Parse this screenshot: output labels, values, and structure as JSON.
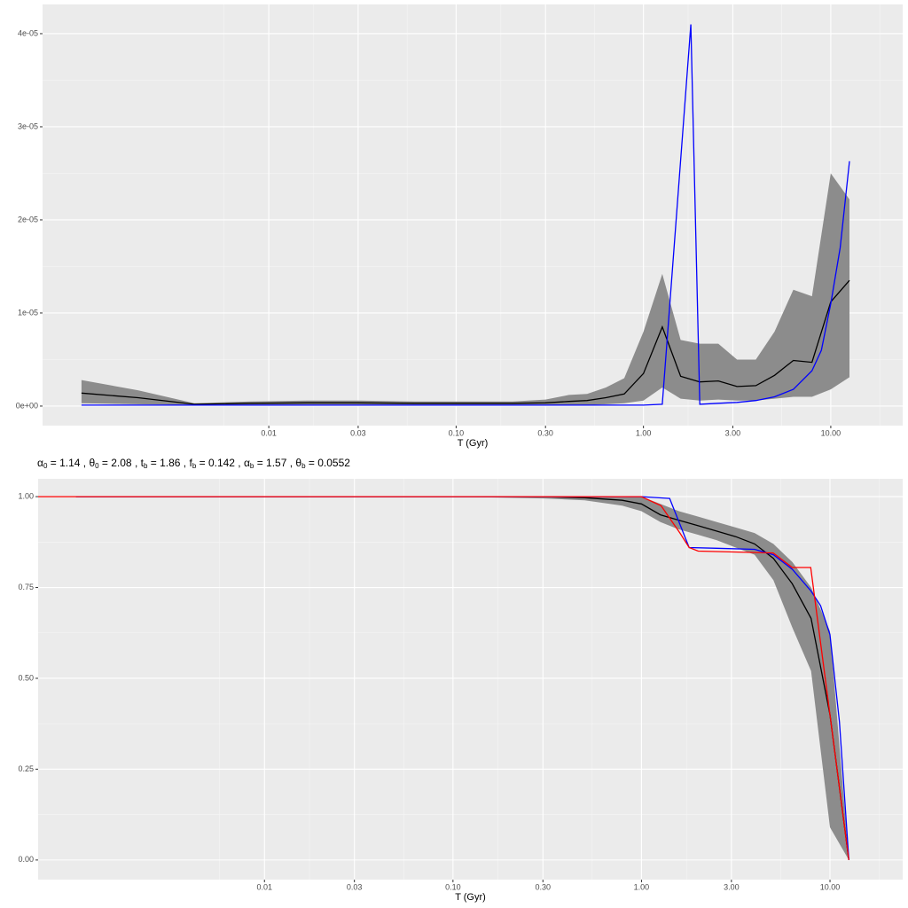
{
  "chart_data": [
    {
      "type": "line",
      "xlabel": "T (Gyr)",
      "xscale": "log",
      "grid": true,
      "xlim": [
        0.00062,
        24.2
      ],
      "ylim": [
        -2.1e-06,
        4.314e-05
      ],
      "xticks": [
        0.01,
        0.03,
        {
          "value": 0.1,
          "label": "0.10"
        },
        {
          "value": 0.3,
          "label": "0.30"
        },
        {
          "value": 1,
          "label": "1.00"
        },
        {
          "value": 3,
          "label": "3.00"
        },
        {
          "value": 10,
          "label": "10.00"
        }
      ],
      "yticks": [
        {
          "value": 0,
          "label": "0e+00"
        },
        {
          "value": 1e-05,
          "label": "1e-05"
        },
        {
          "value": 2e-05,
          "label": "2e-05"
        },
        {
          "value": 3e-05,
          "label": "3e-05"
        },
        {
          "value": 4e-05,
          "label": "4e-05"
        }
      ],
      "x": [
        0.001,
        0.002,
        0.004,
        0.008,
        0.016,
        0.03,
        0.06,
        0.1,
        0.2,
        0.3,
        0.4,
        0.5,
        0.63,
        0.79,
        1.0,
        1.26,
        1.58,
        2.0,
        2.51,
        3.16,
        3.98,
        5.01,
        6.31,
        7.94,
        10.0,
        12.59
      ],
      "band": {
        "color": "#8c8c8c",
        "upper": [
          2.8e-06,
          1.7e-06,
          3e-07,
          5e-07,
          6e-07,
          6e-07,
          5e-07,
          5e-07,
          5e-07,
          7e-07,
          1.2e-06,
          1.3e-06,
          2e-06,
          3e-06,
          8e-06,
          1.42e-05,
          7.1e-06,
          6.7e-06,
          6.7e-06,
          5e-06,
          5e-06,
          8e-06,
          1.25e-05,
          1.18e-05,
          2.5e-05,
          2.22e-05
        ],
        "lower": [
          3e-07,
          2e-07,
          1e-07,
          1e-07,
          1e-07,
          1e-07,
          1e-07,
          1e-07,
          1e-07,
          1e-07,
          1e-07,
          1e-07,
          2e-07,
          3e-07,
          6e-07,
          2e-06,
          8e-07,
          6e-07,
          7e-07,
          6e-07,
          6e-07,
          8e-07,
          1e-06,
          1e-06,
          1.8e-06,
          3.1e-06
        ]
      },
      "series": [
        {
          "color": "#000000",
          "values": [
            1.4e-06,
            9e-07,
            2e-07,
            3e-07,
            3.5e-07,
            3.5e-07,
            3e-07,
            3e-07,
            3e-07,
            3.5e-07,
            5e-07,
            6e-07,
            9e-07,
            1.3e-06,
            3.5e-06,
            8.5e-06,
            3.2e-06,
            2.6e-06,
            2.7e-06,
            2.1e-06,
            2.2e-06,
            3.3e-06,
            4.9e-06,
            4.7e-06,
            1.12e-05,
            1.35e-05
          ]
        },
        {
          "color": "#0000ff",
          "x": [
            0.001,
            1.0,
            1.26,
            1.79,
            2.0,
            2.51,
            3.16,
            3.98,
            5.01,
            6.31,
            7.94,
            8.91,
            10.0,
            11.22,
            12.59
          ],
          "values": [
            1e-07,
            1e-07,
            2e-07,
            4.1e-05,
            2e-07,
            3e-07,
            4e-07,
            6e-07,
            1e-06,
            1.8e-06,
            3.8e-06,
            6e-06,
            1.1e-05,
            1.7e-05,
            2.63e-05
          ]
        }
      ]
    },
    {
      "type": "line",
      "xlabel": "T (Gyr)",
      "xscale": "log",
      "grid": true,
      "annotation": [
        {
          "symbol": "α",
          "sub": "0",
          "text": " = 1.14 , "
        },
        {
          "symbol": "θ",
          "sub": "0",
          "text": " = 2.08 , "
        },
        {
          "symbol": "t",
          "sub": "b",
          "text": " = 1.86 , "
        },
        {
          "symbol": "f",
          "sub": "b",
          "text": " = 0.142 , "
        },
        {
          "symbol": "α",
          "sub": "b",
          "text": " = 1.57 , "
        },
        {
          "symbol": "θ",
          "sub": "b",
          "text": " = 0.0552"
        }
      ],
      "xlim": [
        0.00063,
        24.3
      ],
      "ylim": [
        -0.054,
        1.049
      ],
      "xticks": [
        0.01,
        0.03,
        {
          "value": 0.1,
          "label": "0.10"
        },
        {
          "value": 0.3,
          "label": "0.30"
        },
        {
          "value": 1,
          "label": "1.00"
        },
        {
          "value": 3,
          "label": "3.00"
        },
        {
          "value": 10,
          "label": "10.00"
        }
      ],
      "yticks": [
        {
          "value": 0,
          "label": "0.00"
        },
        0.25,
        {
          "value": 0.5,
          "label": "0.50"
        },
        0.75,
        {
          "value": 1,
          "label": "1.00"
        }
      ],
      "x": [
        0.001,
        0.01,
        0.1,
        0.3,
        0.5,
        0.79,
        1.0,
        1.26,
        1.58,
        2.0,
        2.51,
        3.16,
        3.98,
        5.01,
        6.31,
        7.94,
        10.0,
        12.59
      ],
      "band": {
        "color": "#8c8c8c",
        "upper": [
          1,
          1,
          1,
          1,
          1,
          0.998,
          1.0,
          0.98,
          0.96,
          0.945,
          0.93,
          0.915,
          0.9,
          0.87,
          0.82,
          0.75,
          0.63,
          0
        ],
        "lower": [
          1,
          1,
          1,
          0.995,
          0.99,
          0.975,
          0.96,
          0.93,
          0.91,
          0.895,
          0.88,
          0.86,
          0.84,
          0.77,
          0.64,
          0.52,
          0.09,
          0
        ]
      },
      "series": [
        {
          "color": "#000000",
          "values": [
            1,
            1,
            1,
            1,
            0.997,
            0.99,
            0.98,
            0.95,
            0.935,
            0.92,
            0.905,
            0.89,
            0.87,
            0.83,
            0.76,
            0.665,
            0.4,
            0
          ]
        },
        {
          "color": "#0000ff",
          "x": [
            0.001,
            1.0,
            1.41,
            1.79,
            2.51,
            3.98,
            5.01,
            6.31,
            7.94,
            8.91,
            10.0,
            11.22,
            12.59
          ],
          "values": [
            1,
            1,
            0.995,
            0.86,
            0.858,
            0.855,
            0.84,
            0.8,
            0.74,
            0.7,
            0.62,
            0.38,
            0
          ]
        },
        {
          "color": "#ff0000",
          "x": [
            0.00063,
            0.3,
            1.0,
            1.27,
            1.6,
            1.79,
            2.0,
            5.0,
            6.3,
            7.9,
            10.0,
            12.59
          ],
          "values": [
            1,
            1,
            1,
            0.975,
            0.9,
            0.86,
            0.85,
            0.845,
            0.805,
            0.805,
            0.4,
            0
          ]
        }
      ]
    }
  ]
}
